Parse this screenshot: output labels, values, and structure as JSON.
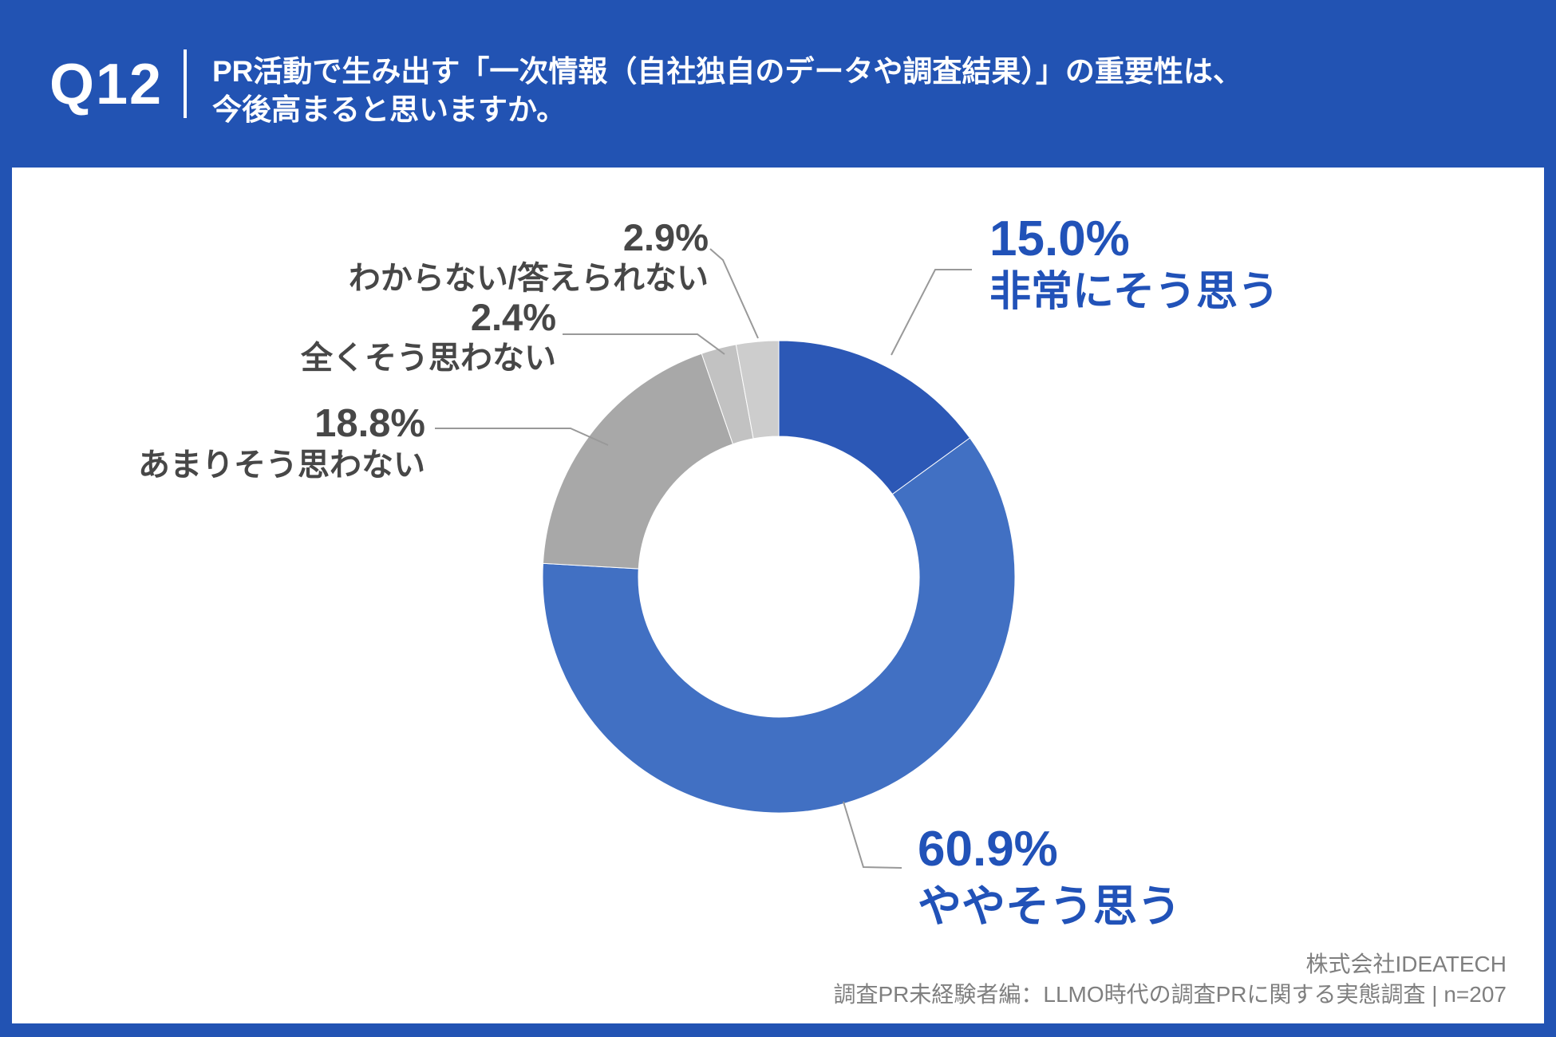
{
  "header": {
    "question_number": "Q12",
    "title_line1": "PR活動で生み出す「一次情報（自社独自のデータや調査結果）」の重要性は、",
    "title_line2": "今後高まると思いますか。"
  },
  "chart_data": {
    "type": "pie",
    "subtype": "donut",
    "title": "PR活動で生み出す「一次情報（自社独自のデータや調査結果）」の重要性は、今後高まると思いますか。",
    "unit": "%",
    "sample_size_label": "n=207",
    "start_angle": "top",
    "direction": "clockwise",
    "legend_position": "outside-callouts",
    "segments": [
      {
        "label": "非常にそう思う",
        "value": 15.0,
        "display": "15.0%",
        "color": "#2c58b6"
      },
      {
        "label": "ややそう思う",
        "value": 60.9,
        "display": "60.9%",
        "color": "#4170c3"
      },
      {
        "label": "あまりそう思わない",
        "value": 18.8,
        "display": "18.8%",
        "color": "#a8a8a8"
      },
      {
        "label": "全くそう思わない",
        "value": 2.4,
        "display": "2.4%",
        "color": "#c2c2c2"
      },
      {
        "label": "わからない/答えられない",
        "value": 2.9,
        "display": "2.9%",
        "color": "#cdcdcd"
      }
    ]
  },
  "footer": {
    "company": "株式会社IDEATECH",
    "source": "調査PR未経験者編：LLMO時代の調査PRに関する実態調査 | n=207"
  },
  "colors": {
    "frame_blue": "#2253b3",
    "label_blue": "#2152b8",
    "label_gray": "#474747",
    "leader_line": "#999999",
    "footer_gray": "#7f7f7f",
    "panel_white": "#ffffff"
  }
}
